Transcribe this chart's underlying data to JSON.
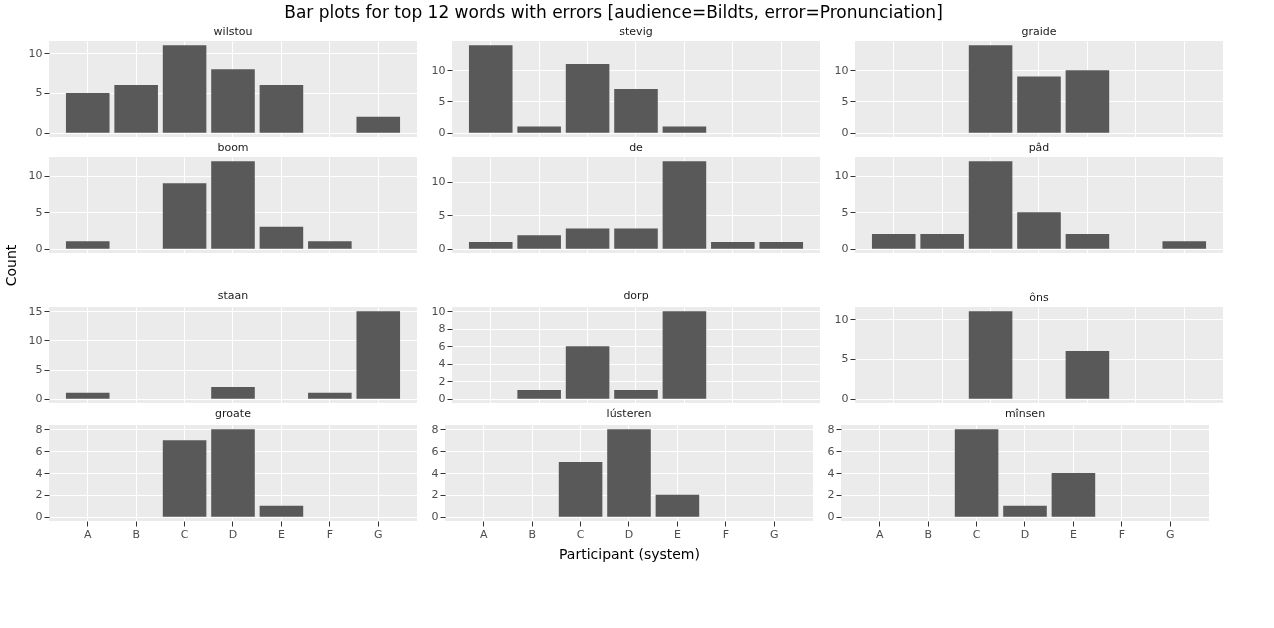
{
  "chart_data": [
    {
      "type": "bar",
      "title": "wilstou",
      "annotations": [
        "Bar plots for top 12 words with errors [audience=Bildts, error=Pronunciation]"
      ],
      "categories": [
        null,
        null,
        null,
        null,
        null,
        null,
        null
      ],
      "values": [
        5,
        6,
        11,
        8,
        6,
        null,
        2
      ],
      "color": "#595959",
      "ylim": [
        -0.55,
        11.55
      ],
      "yticks": [
        0,
        5,
        10
      ],
      "grid": true,
      "tick_labels": "y"
    },
    {
      "type": "bar",
      "title": "stevig",
      "categories": [
        null,
        null,
        null,
        null,
        null,
        null,
        null
      ],
      "values": [
        14,
        1,
        11,
        7,
        1,
        null,
        null
      ],
      "color": "#595959",
      "ylim": [
        -0.7,
        14.7
      ],
      "yticks": [
        0,
        5,
        10
      ],
      "grid": true,
      "tick_labels": "y"
    },
    {
      "type": "bar",
      "title": "graide",
      "categories": [
        null,
        null,
        null,
        null,
        null,
        null,
        null
      ],
      "values": [
        null,
        null,
        14,
        9,
        10,
        null,
        null
      ],
      "color": "#595959",
      "ylim": [
        -0.7,
        14.7
      ],
      "yticks": [
        0,
        5,
        10
      ],
      "grid": true,
      "tick_labels": "y"
    },
    {
      "type": "bar",
      "title": "boom",
      "ylabel": "Count",
      "categories": [
        null,
        null,
        null,
        null,
        null,
        null,
        null
      ],
      "values": [
        1,
        null,
        9,
        12,
        3,
        1,
        null
      ],
      "color": "#595959",
      "ylim": [
        -0.6,
        12.6
      ],
      "yticks": [
        0,
        5,
        10
      ],
      "grid": true,
      "tick_labels": "y"
    },
    {
      "type": "bar",
      "title": "de",
      "categories": [
        null,
        null,
        null,
        null,
        null,
        null,
        null
      ],
      "values": [
        1,
        2,
        3,
        3,
        13,
        1,
        1
      ],
      "color": "#595959",
      "ylim": [
        -0.65,
        13.65
      ],
      "yticks": [
        0,
        5,
        10
      ],
      "grid": true,
      "tick_labels": "y"
    },
    {
      "type": "bar",
      "title": "pâd",
      "categories": [
        null,
        null,
        null,
        null,
        null,
        null,
        null
      ],
      "values": [
        2,
        2,
        12,
        5,
        2,
        null,
        1
      ],
      "color": "#595959",
      "ylim": [
        -0.6,
        12.6
      ],
      "yticks": [
        0,
        5,
        10
      ],
      "grid": true,
      "tick_labels": "y"
    },
    {
      "type": "bar",
      "title": "staan",
      "categories": [
        null,
        null,
        null,
        null,
        null,
        null,
        null
      ],
      "values": [
        1,
        null,
        null,
        2,
        null,
        1,
        15
      ],
      "color": "#595959",
      "ylim": [
        -0.75,
        15.75
      ],
      "yticks": [
        0,
        5,
        10,
        15
      ],
      "grid": true,
      "tick_labels": "y"
    },
    {
      "type": "bar",
      "title": "dorp",
      "categories": [
        null,
        null,
        null,
        null,
        null,
        null,
        null
      ],
      "values": [
        null,
        1,
        6,
        1,
        10,
        null,
        null
      ],
      "color": "#595959",
      "ylim": [
        -0.5,
        10.5
      ],
      "yticks": [
        0,
        2,
        4,
        6,
        8,
        10
      ],
      "grid": true,
      "tick_labels": "y"
    },
    {
      "type": "bar",
      "title": "ôns",
      "categories": [
        null,
        null,
        null,
        null,
        null,
        null,
        null
      ],
      "values": [
        null,
        null,
        11,
        null,
        6,
        null,
        null
      ],
      "color": "#595959",
      "ylim": [
        -0.55,
        11.55
      ],
      "yticks": [
        0,
        5,
        10
      ],
      "grid": true,
      "tick_labels": "y"
    },
    {
      "type": "bar",
      "title": "groate",
      "categories": [
        "A",
        "B",
        "C",
        "D",
        "E",
        "F",
        "G"
      ],
      "values": [
        null,
        null,
        7,
        8,
        1,
        null,
        null
      ],
      "color": "#595959",
      "ylim": [
        -0.4,
        8.4
      ],
      "yticks": [
        0,
        2,
        4,
        6,
        8
      ],
      "grid": true
    },
    {
      "type": "bar",
      "title": "lústeren",
      "xlabel": "Participant (system)",
      "categories": [
        "A",
        "B",
        "C",
        "D",
        "E",
        "F",
        "G"
      ],
      "values": [
        null,
        null,
        5,
        8,
        2,
        null,
        null
      ],
      "color": "#595959",
      "ylim": [
        -0.4,
        8.4
      ],
      "yticks": [
        0,
        2,
        4,
        6,
        8
      ],
      "grid": true
    },
    {
      "type": "bar",
      "title": "mînsen",
      "categories": [
        "A",
        "B",
        "C",
        "D",
        "E",
        "F",
        "G"
      ],
      "values": [
        null,
        null,
        8,
        1,
        4,
        null,
        null
      ],
      "color": "#595959",
      "ylim": [
        -0.4,
        8.4
      ],
      "yticks": [
        0,
        2,
        4,
        6,
        8
      ],
      "grid": true
    }
  ]
}
